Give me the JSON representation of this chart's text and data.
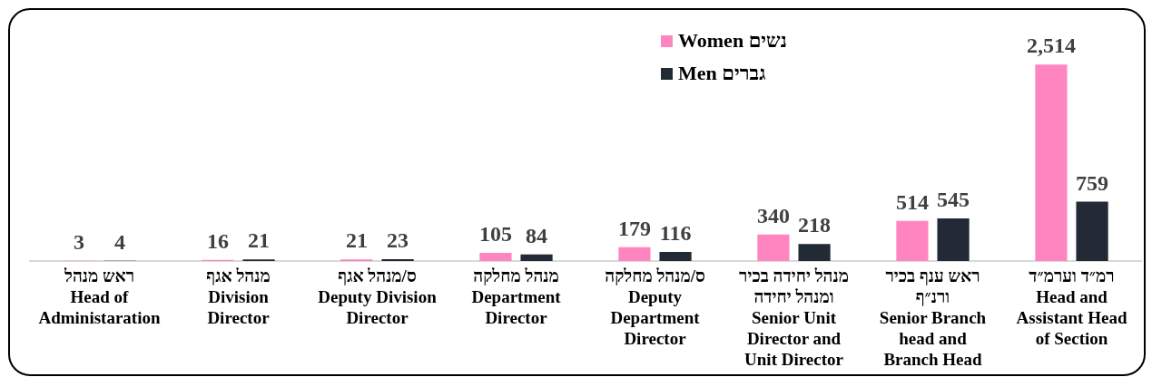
{
  "chart_data": {
    "type": "bar",
    "categories": [
      "ראש מנהל\nHead of\nAdministaration",
      "מנהל אגף\nDivision\nDirector",
      "ס/מנהל אגף\nDeputy Division\nDirector",
      "מנהל מחלקה\nDepartment\nDirector",
      "ס/מנהל מחלקה\nDeputy\nDepartment\nDirector",
      "מנהל יחידה בכיר\nומנהל יחידה\nSenior Unit\nDirector and\nUnit Director",
      "ראש ענף בכיר\nורנ״ף\nSenior Branch\nhead and\nBranch Head",
      "רמ״ד וערמ״ד\nHead and\nAssistant Head\nof Section"
    ],
    "series": [
      {
        "name": "Women נשים",
        "color": "#ff85c0",
        "values": [
          3,
          16,
          21,
          105,
          179,
          340,
          514,
          2514
        ],
        "value_labels": [
          "3",
          "16",
          "21",
          "105",
          "179",
          "340",
          "514",
          "2,514"
        ]
      },
      {
        "name": "Men גברים",
        "color": "#222a35",
        "values": [
          4,
          21,
          23,
          84,
          116,
          218,
          545,
          759
        ],
        "value_labels": [
          "4",
          "21",
          "23",
          "84",
          "116",
          "218",
          "545",
          "759"
        ]
      }
    ],
    "legend": "top right",
    "tick_labels": "x"
  }
}
